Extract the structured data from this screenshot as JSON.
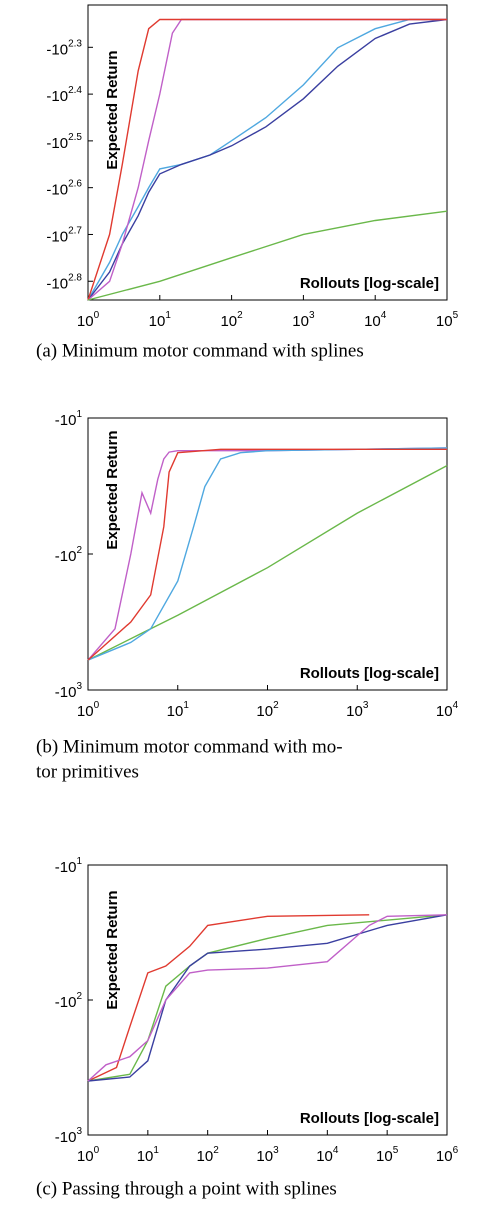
{
  "chart_data": [
    {
      "type": "line",
      "xscale": "log",
      "yscale": "neglog",
      "ylabel": "Expected Return",
      "xlabel": "Rollouts [log-scale]",
      "caption": [
        "(a) Minimum motor command with splines"
      ],
      "xlim": [
        1,
        100000
      ],
      "ylim": [
        -692,
        -162
      ],
      "xticks": [
        {
          "value": 1,
          "label": "10",
          "sup": "0"
        },
        {
          "value": 10,
          "label": "10",
          "sup": "1"
        },
        {
          "value": 100,
          "label": "10",
          "sup": "2"
        },
        {
          "value": 1000,
          "label": "10",
          "sup": "3"
        },
        {
          "value": 10000,
          "label": "10",
          "sup": "4"
        },
        {
          "value": 100000,
          "label": "10",
          "sup": "5"
        }
      ],
      "yticks": [
        {
          "value": -199.5,
          "label": "-10",
          "sup": "2.3"
        },
        {
          "value": -251.2,
          "label": "-10",
          "sup": "2.4"
        },
        {
          "value": -316.2,
          "label": "-10",
          "sup": "2.5"
        },
        {
          "value": -398.1,
          "label": "-10",
          "sup": "2.6"
        },
        {
          "value": -501.2,
          "label": "-10",
          "sup": "2.7"
        },
        {
          "value": -631.0,
          "label": "-10",
          "sup": "2.8"
        }
      ],
      "series": [
        {
          "color": "#4fa8e0",
          "x": [
            1,
            2,
            3,
            5,
            7,
            10,
            20,
            50,
            100,
            300,
            1000,
            3000,
            10000,
            30000,
            100000
          ],
          "values": [
            -692,
            -575,
            -501,
            -437,
            -398,
            -363,
            -355,
            -339,
            -316,
            -282,
            -240,
            -200,
            -182,
            -174,
            -174
          ]
        },
        {
          "color": "#3a3fa0",
          "x": [
            1,
            2,
            3,
            5,
            7,
            10,
            20,
            50,
            100,
            300,
            1000,
            3000,
            10000,
            30000,
            100000
          ],
          "values": [
            -692,
            -603,
            -525,
            -457,
            -407,
            -372,
            -355,
            -339,
            -324,
            -295,
            -257,
            -219,
            -191,
            -178,
            -174
          ]
        },
        {
          "color": "#c060c8",
          "x": [
            1,
            2,
            3,
            5,
            7,
            10,
            15,
            20,
            100000
          ],
          "values": [
            -692,
            -631,
            -525,
            -398,
            -316,
            -251,
            -186,
            -174,
            -174
          ]
        },
        {
          "color": "#e03a30",
          "x": [
            1,
            2,
            3,
            5,
            7,
            10,
            100000
          ],
          "values": [
            -692,
            -501,
            -355,
            -224,
            -182,
            -174,
            -174
          ]
        },
        {
          "color": "#6ab84a",
          "x": [
            1,
            10,
            100,
            1000,
            10000,
            100000
          ],
          "values": [
            -692,
            -631,
            -562,
            -501,
            -468,
            -447
          ]
        }
      ]
    },
    {
      "type": "line",
      "xscale": "log",
      "yscale": "neglog",
      "ylabel": "Expected Return",
      "xlabel": "Rollouts [log-scale]",
      "caption": [
        "(b) Minimum motor command with mo-",
        "tor primitives"
      ],
      "xlim": [
        1,
        10000
      ],
      "ylim": [
        -1000,
        -10
      ],
      "xticks": [
        {
          "value": 1,
          "label": "10",
          "sup": "0"
        },
        {
          "value": 10,
          "label": "10",
          "sup": "1"
        },
        {
          "value": 100,
          "label": "10",
          "sup": "2"
        },
        {
          "value": 1000,
          "label": "10",
          "sup": "3"
        },
        {
          "value": 10000,
          "label": "10",
          "sup": "4"
        }
      ],
      "yticks": [
        {
          "value": -10,
          "label": "-10",
          "sup": "1"
        },
        {
          "value": -100,
          "label": "-10",
          "sup": "2"
        },
        {
          "value": -1000,
          "label": "-10",
          "sup": "3"
        }
      ],
      "series": [
        {
          "color": "#6ab84a",
          "x": [
            1,
            10,
            100,
            1000,
            10000
          ],
          "values": [
            -603,
            -282,
            -126,
            -50,
            -22.4
          ]
        },
        {
          "color": "#c060c8",
          "x": [
            1,
            2,
            3,
            4,
            5,
            6,
            7,
            8,
            10,
            100,
            10000
          ],
          "values": [
            -603,
            -355,
            -100,
            -35.5,
            -50.1,
            -28.2,
            -20.0,
            -17.8,
            -17.4,
            -17.4,
            -16.6
          ]
        },
        {
          "color": "#4fa8e0",
          "x": [
            1,
            3,
            5,
            10,
            15,
            20,
            30,
            50,
            100,
            10000
          ],
          "values": [
            -603,
            -447,
            -355,
            -158,
            -63,
            -32,
            -20,
            -18,
            -17.4,
            -16.6
          ]
        },
        {
          "color": "#e03a30",
          "x": [
            1,
            3,
            5,
            7,
            8,
            10,
            30,
            100,
            10000
          ],
          "values": [
            -603,
            -316,
            -200,
            -63,
            -25,
            -18,
            -17,
            -17,
            -17
          ]
        }
      ]
    },
    {
      "type": "line",
      "xscale": "log",
      "yscale": "neglog",
      "ylabel": "Expected Return",
      "xlabel": "Rollouts [log-scale]",
      "caption": [
        "(c) Passing through a point with splines"
      ],
      "xlim": [
        1,
        1000000
      ],
      "ylim": [
        -1000,
        -10
      ],
      "xticks": [
        {
          "value": 1,
          "label": "10",
          "sup": "0"
        },
        {
          "value": 10,
          "label": "10",
          "sup": "1"
        },
        {
          "value": 100,
          "label": "10",
          "sup": "2"
        },
        {
          "value": 1000,
          "label": "10",
          "sup": "3"
        },
        {
          "value": 10000,
          "label": "10",
          "sup": "4"
        },
        {
          "value": 100000,
          "label": "10",
          "sup": "5"
        },
        {
          "value": 1000000,
          "label": "10",
          "sup": "6"
        }
      ],
      "yticks": [
        {
          "value": -10,
          "label": "-10",
          "sup": "1"
        },
        {
          "value": -100,
          "label": "-10",
          "sup": "2"
        },
        {
          "value": -1000,
          "label": "-10",
          "sup": "3"
        }
      ],
      "series": [
        {
          "color": "#e03a30",
          "x": [
            1,
            3,
            5,
            10,
            20,
            50,
            100,
            1000,
            50000
          ],
          "values": [
            -398,
            -316,
            -158,
            -63,
            -56,
            -40,
            -28,
            -24,
            -23.4
          ]
        },
        {
          "color": "#6ab84a",
          "x": [
            1,
            5,
            10,
            20,
            50,
            100,
            1000,
            10000,
            1000000
          ],
          "values": [
            -398,
            -355,
            -200,
            -79,
            -56,
            -45,
            -35,
            -28,
            -23.4
          ]
        },
        {
          "color": "#3a3fa0",
          "x": [
            1,
            5,
            10,
            20,
            50,
            100,
            1000,
            10000,
            100000,
            1000000
          ],
          "values": [
            -398,
            -372,
            -282,
            -100,
            -56,
            -45,
            -42,
            -38,
            -28,
            -23.4
          ]
        },
        {
          "color": "#c060c8",
          "x": [
            1,
            2,
            5,
            10,
            20,
            50,
            100,
            1000,
            10000,
            50000,
            100000,
            1000000
          ],
          "values": [
            -398,
            -302,
            -263,
            -200,
            -100,
            -63,
            -60,
            -58,
            -52,
            -28,
            -24,
            -23.4
          ]
        }
      ]
    }
  ]
}
